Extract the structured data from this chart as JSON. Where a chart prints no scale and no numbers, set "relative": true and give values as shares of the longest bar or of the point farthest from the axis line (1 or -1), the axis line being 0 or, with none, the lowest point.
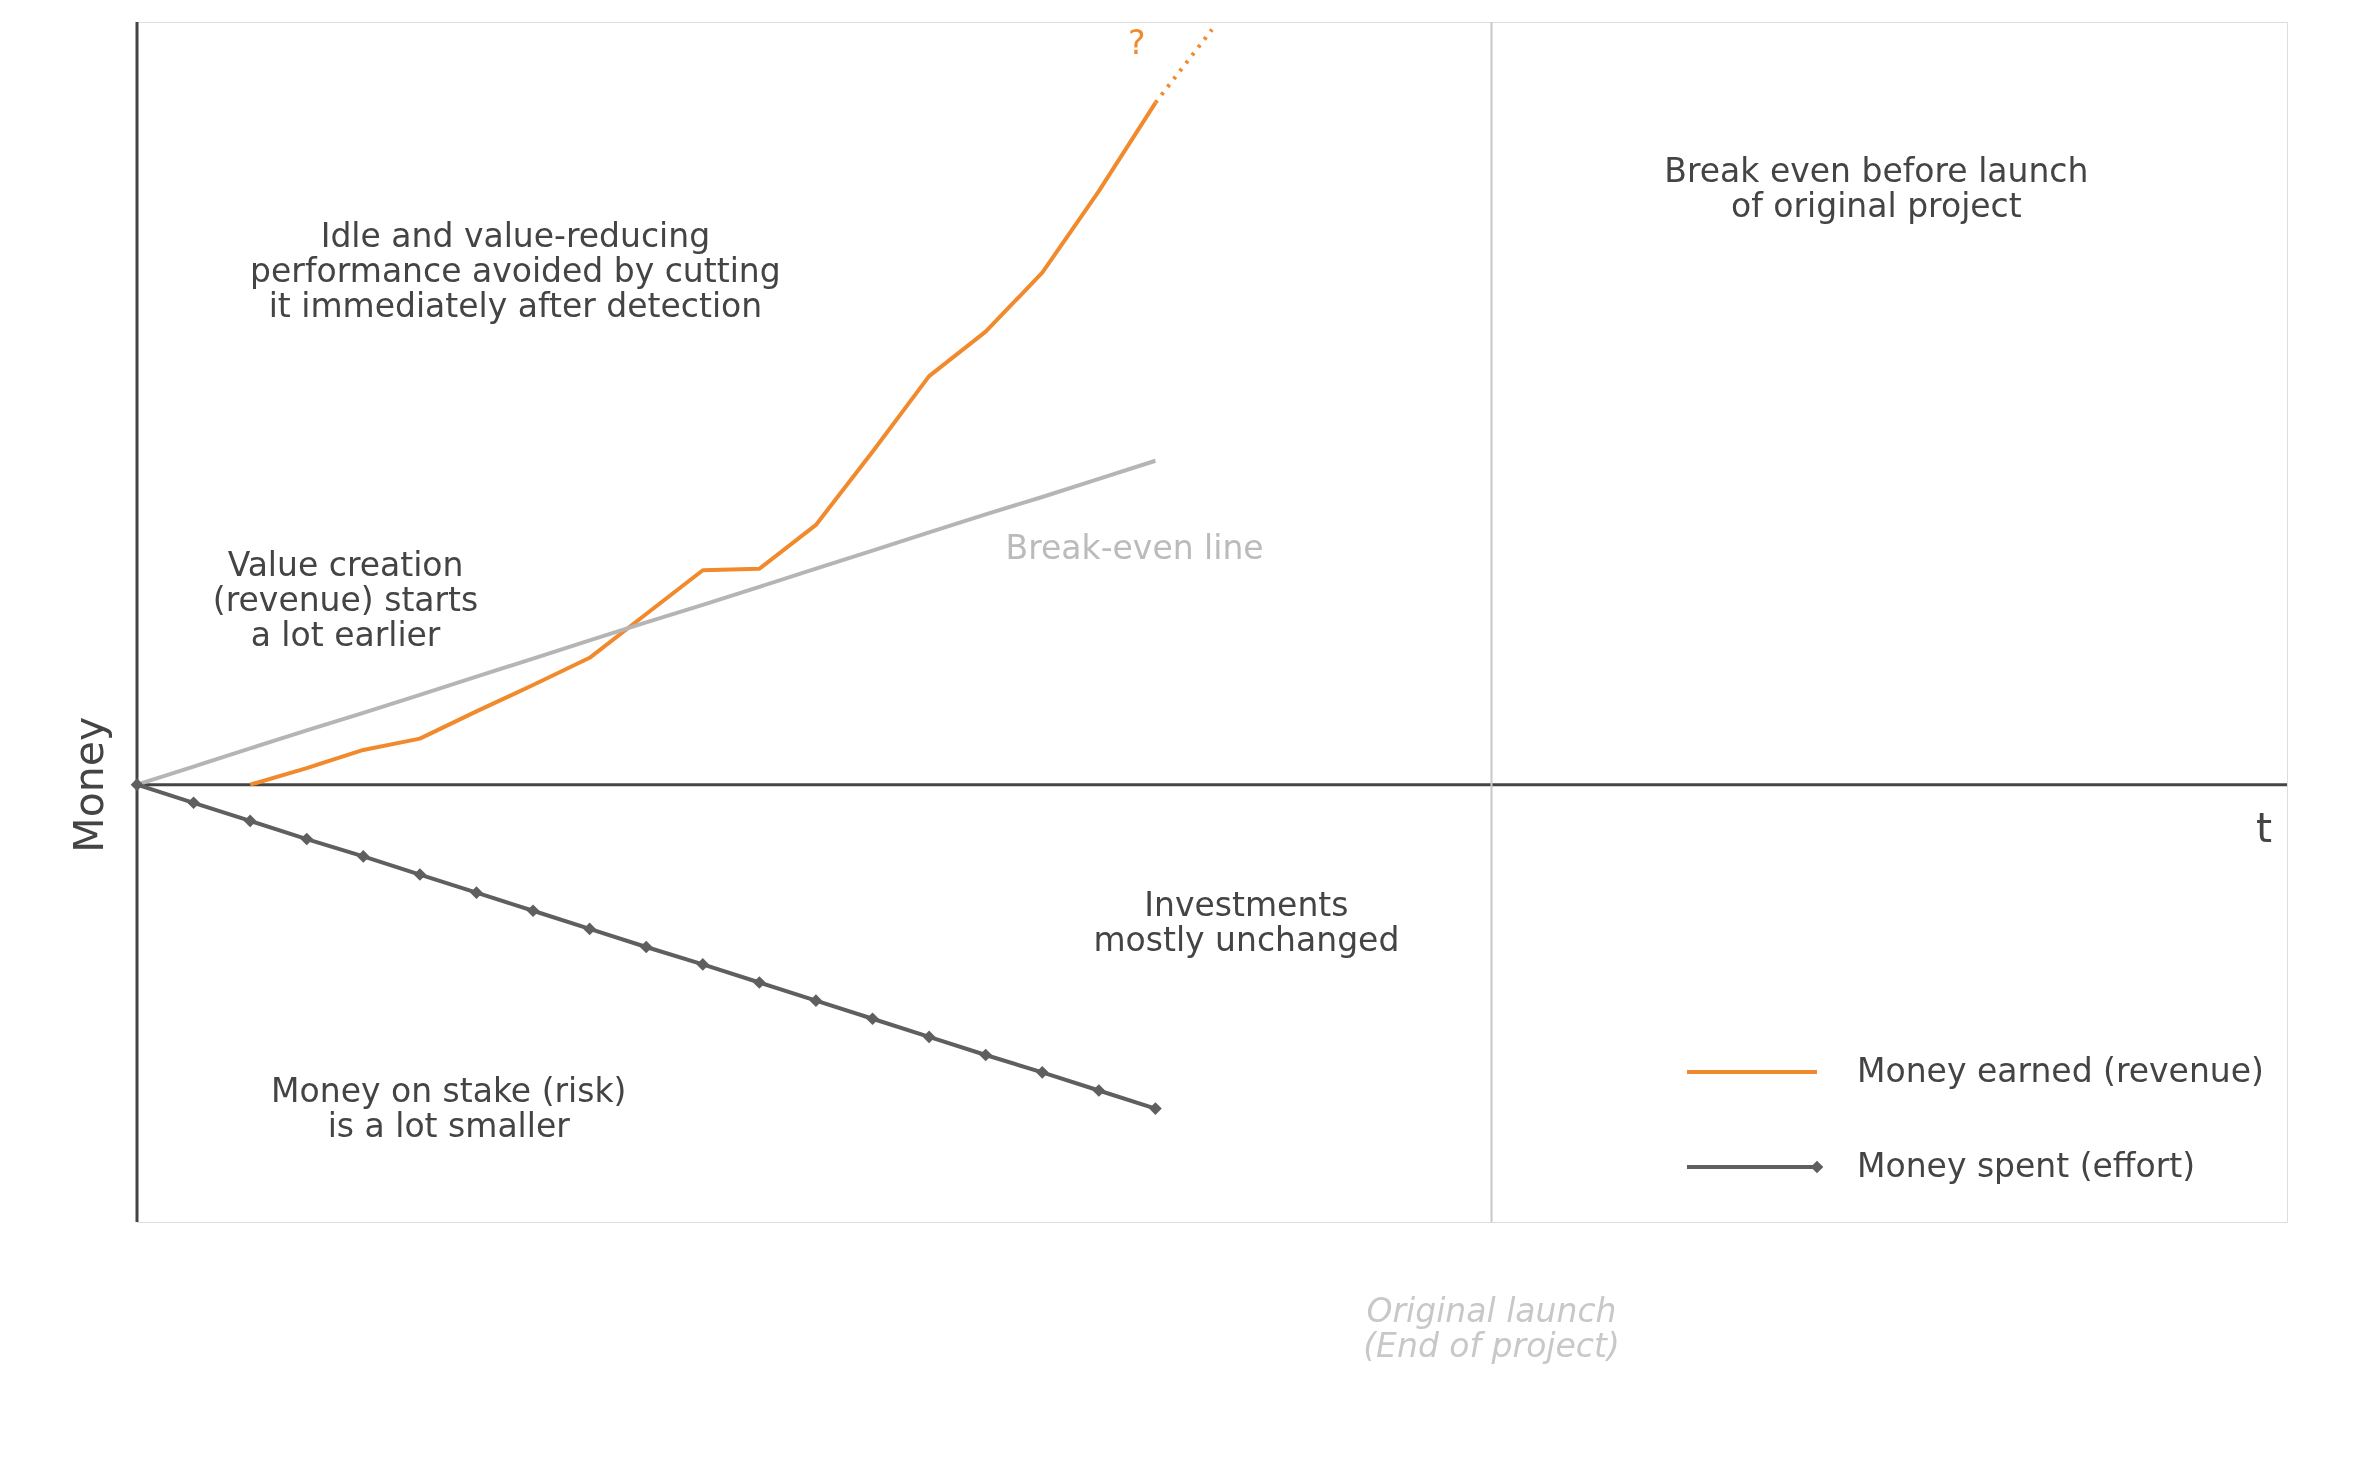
{
  "chart_data": {
    "type": "line",
    "relative": true,
    "xlabel": "t",
    "ylabel": "Money",
    "legend": "bottom right",
    "marker": "none",
    "line_style": "solid",
    "categories": [
      null,
      null,
      null,
      null,
      null,
      null,
      null,
      null,
      null,
      null,
      null,
      null,
      null,
      null,
      null,
      null,
      null,
      null,
      null,
      null,
      null,
      null,
      null,
      null,
      null,
      null,
      null,
      null,
      null,
      null,
      null,
      null,
      null,
      null,
      null,
      null,
      null,
      null,
      null
    ],
    "series": [
      {
        "name": "Money earned (revenue)",
        "color": "#f08a2c",
        "values": [
          null,
          null,
          0,
          0.022,
          0.046,
          0.061,
          0.097,
          0.132,
          0.168,
          0.226,
          0.284,
          0.286,
          0.344,
          0.441,
          0.541,
          0.6,
          0.678,
          0.786,
          0.903,
          null,
          null,
          null,
          null,
          null,
          null,
          null,
          null,
          null,
          null,
          null,
          null,
          null,
          null,
          null,
          null,
          null,
          null,
          null,
          null
        ]
      },
      {
        "color": "#f08a2c",
        "line_style": "dotted",
        "values": [
          null,
          null,
          null,
          null,
          null,
          null,
          null,
          null,
          null,
          null,
          null,
          null,
          null,
          null,
          null,
          null,
          null,
          null,
          0.903,
          1.0,
          null,
          null,
          null,
          null,
          null,
          null,
          null,
          null,
          null,
          null,
          null,
          null,
          null,
          null,
          null,
          null,
          null,
          null,
          null
        ]
      },
      {
        "color": "#b5b5b5",
        "values": [
          0,
          0.024,
          0.048,
          0.072,
          0.095,
          0.119,
          0.143,
          0.167,
          0.191,
          0.215,
          0.238,
          0.262,
          0.286,
          0.31,
          0.334,
          0.358,
          0.381,
          0.405,
          0.429,
          null,
          null,
          null,
          null,
          null,
          null,
          null,
          null,
          null,
          null,
          null,
          null,
          null,
          null,
          null,
          null,
          null,
          null,
          null,
          null
        ]
      },
      {
        "name": "Money spent (effort)",
        "color": "#5f5f5f",
        "marker": "diamond",
        "values": [
          0,
          -0.024,
          -0.048,
          -0.072,
          -0.095,
          -0.119,
          -0.143,
          -0.167,
          -0.191,
          -0.215,
          -0.238,
          -0.262,
          -0.286,
          -0.31,
          -0.334,
          -0.358,
          -0.381,
          -0.405,
          -0.429,
          null,
          null,
          null,
          null,
          null,
          null,
          null,
          null,
          null,
          null,
          null,
          null,
          null,
          null,
          null,
          null,
          null,
          null,
          null,
          null
        ]
      }
    ],
    "annotations": [
      "Original launch\n(End of project)",
      "Idle and value-reducing\nperformance avoided by cutting\nit immediately after detection",
      "Value creation\n(revenue) starts\na lot earlier",
      "Money on stake (risk)\nis a lot smaller",
      "Investments\nmostly unchanged",
      "Break even before launch\nof original project",
      "Break-even line",
      "?"
    ]
  }
}
